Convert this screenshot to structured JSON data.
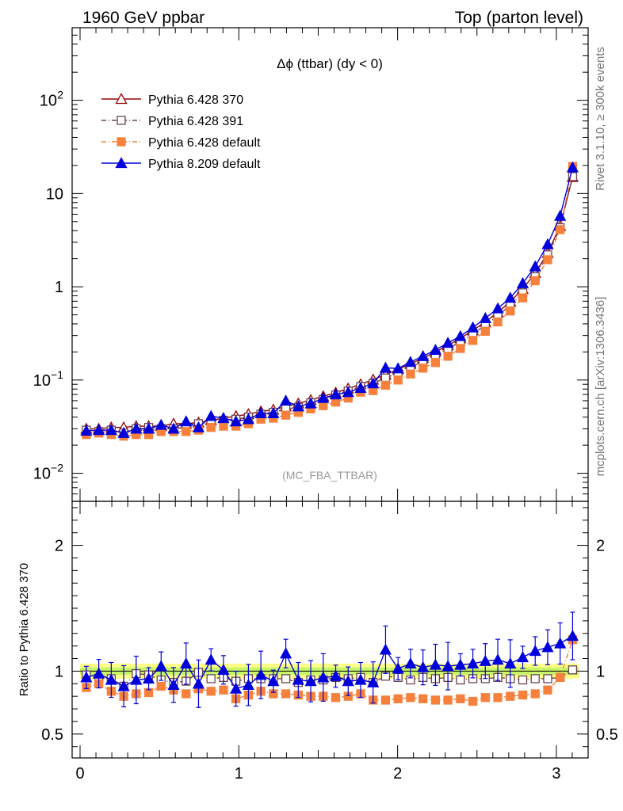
{
  "header": {
    "left": "1960 GeV ppbar",
    "right": "Top (parton level)"
  },
  "side_labels": {
    "rivet": "Rivet 3.1.10, ≥ 300k events",
    "mcplots": "mcplots.cern.ch [arXiv:1306.3436]"
  },
  "main_title": "Δϕ (ttbar) (dy < 0)",
  "watermark": "(MC_FBA_TTBAR)",
  "ratio_ylabel": "Ratio to Pythia 6.428 370",
  "colors": {
    "p370": "#990000",
    "p391": "#6b4351",
    "p6def": "#f5813d",
    "p8def": "#0000dd",
    "band_inner": "#c8f56a",
    "band_outer": "#ffff88"
  },
  "chart_data": [
    {
      "type": "line",
      "panel": "main",
      "yscale": "log",
      "xlim": [
        -0.05,
        3.2
      ],
      "ylim": [
        0.005,
        600
      ],
      "x_ticks": [
        0,
        1,
        2,
        3
      ],
      "y_ticks": [
        {
          "value": 0.01,
          "label": "10",
          "exp": "−2"
        },
        {
          "value": 0.1,
          "label": "10",
          "exp": "−1"
        },
        {
          "value": 1,
          "label": "1",
          "exp": ""
        },
        {
          "value": 10,
          "label": "10",
          "exp": ""
        },
        {
          "value": 100,
          "label": "10",
          "exp": "2"
        }
      ],
      "x": [
        0.0393,
        0.1178,
        0.1963,
        0.2749,
        0.3534,
        0.432,
        0.5105,
        0.589,
        0.6676,
        0.7461,
        0.8247,
        0.9032,
        0.9817,
        1.0603,
        1.1388,
        1.2174,
        1.2959,
        1.3744,
        1.453,
        1.5315,
        1.6101,
        1.6886,
        1.7671,
        1.8457,
        1.9242,
        2.0028,
        2.0813,
        2.1598,
        2.2384,
        2.3169,
        2.3955,
        2.474,
        2.5525,
        2.6311,
        2.7096,
        2.7882,
        2.8667,
        2.9452,
        3.0238,
        3.1023
      ],
      "series": [
        {
          "name": "Pythia 6.428 370",
          "key": "p370",
          "marker": "triangle-open",
          "dash": "",
          "values": [
            0.03,
            0.03,
            0.031,
            0.031,
            0.032,
            0.032,
            0.032,
            0.034,
            0.034,
            0.035,
            0.037,
            0.039,
            0.041,
            0.043,
            0.046,
            0.048,
            0.052,
            0.056,
            0.061,
            0.067,
            0.073,
            0.081,
            0.09,
            0.101,
            0.114,
            0.13,
            0.149,
            0.172,
            0.2,
            0.235,
            0.28,
            0.34,
            0.42,
            0.53,
            0.69,
            0.95,
            1.4,
            2.3,
            4.5,
            15.0
          ]
        },
        {
          "name": "Pythia 6.428 391",
          "key": "p391",
          "marker": "square-open",
          "dash": "6,3,1,3",
          "values": [
            0.029,
            0.028,
            0.029,
            0.027,
            0.03,
            0.031,
            0.03,
            0.03,
            0.031,
            0.034,
            0.035,
            0.037,
            0.038,
            0.04,
            0.043,
            0.045,
            0.049,
            0.051,
            0.057,
            0.062,
            0.069,
            0.076,
            0.085,
            0.092,
            0.105,
            0.119,
            0.138,
            0.158,
            0.186,
            0.216,
            0.258,
            0.312,
            0.387,
            0.49,
            0.63,
            0.86,
            1.28,
            2.2,
            4.3,
            15.2
          ]
        },
        {
          "name": "Pythia 6.428 default",
          "key": "p6def",
          "marker": "square-filled",
          "dash": "6,3,1,3",
          "values": [
            0.026,
            0.027,
            0.026,
            0.025,
            0.026,
            0.026,
            0.028,
            0.028,
            0.028,
            0.029,
            0.031,
            0.032,
            0.032,
            0.034,
            0.038,
            0.039,
            0.042,
            0.045,
            0.049,
            0.053,
            0.058,
            0.064,
            0.074,
            0.077,
            0.088,
            0.1,
            0.116,
            0.134,
            0.154,
            0.18,
            0.218,
            0.266,
            0.333,
            0.42,
            0.55,
            0.76,
            1.16,
            1.95,
            4.1,
            19.5
          ]
        },
        {
          "name": "Pythia 8.209 default",
          "key": "p8def",
          "marker": "triangle-filled",
          "dash": "",
          "values": [
            0.0285,
            0.029,
            0.029,
            0.027,
            0.03,
            0.03,
            0.033,
            0.03,
            0.036,
            0.031,
            0.041,
            0.039,
            0.036,
            0.038,
            0.044,
            0.044,
            0.06,
            0.052,
            0.056,
            0.064,
            0.07,
            0.074,
            0.082,
            0.092,
            0.135,
            0.133,
            0.156,
            0.18,
            0.21,
            0.25,
            0.295,
            0.365,
            0.46,
            0.585,
            0.76,
            1.09,
            1.65,
            2.85,
            5.75,
            19.0
          ]
        }
      ]
    },
    {
      "type": "line",
      "panel": "ratio",
      "xlim": [
        -0.05,
        3.2
      ],
      "ylim": [
        0.31,
        2.35
      ],
      "x_ticks": [
        0,
        1,
        2,
        3
      ],
      "y_ticks": [
        0.5,
        1,
        2
      ],
      "ylabel": "Ratio to Pythia 6.428 370",
      "reference_band": {
        "inner": 0.03,
        "outer": 0.06
      },
      "series": [
        {
          "name": "Pythia 6.428 391",
          "key": "p391",
          "values": [
            0.97,
            0.94,
            0.94,
            0.88,
            0.98,
            0.97,
            0.93,
            0.91,
            0.92,
            0.99,
            0.94,
            0.95,
            0.92,
            0.94,
            0.94,
            0.94,
            0.94,
            0.91,
            0.93,
            0.93,
            0.95,
            0.94,
            0.95,
            0.91,
            0.96,
            0.95,
            0.93,
            0.95,
            0.94,
            0.95,
            0.93,
            0.94,
            0.94,
            0.95,
            0.94,
            0.93,
            0.94,
            0.94,
            0.95,
            1.01
          ]
        },
        {
          "name": "Pythia 6.428 default",
          "key": "p6def",
          "values": [
            0.87,
            0.9,
            0.84,
            0.8,
            0.82,
            0.83,
            0.88,
            0.85,
            0.82,
            0.86,
            0.84,
            0.85,
            0.78,
            0.81,
            0.84,
            0.82,
            0.82,
            0.81,
            0.8,
            0.8,
            0.79,
            0.8,
            0.82,
            0.77,
            0.77,
            0.78,
            0.79,
            0.78,
            0.77,
            0.77,
            0.78,
            0.76,
            0.79,
            0.79,
            0.8,
            0.81,
            0.82,
            0.85,
            0.95,
            1.25
          ]
        },
        {
          "name": "Pythia 8.209 default",
          "key": "p8def",
          "values": [
            0.95,
            0.98,
            0.93,
            0.88,
            0.93,
            0.94,
            1.04,
            0.89,
            1.06,
            0.9,
            1.09,
            1.01,
            0.86,
            0.89,
            0.97,
            0.92,
            1.14,
            0.93,
            0.92,
            0.95,
            0.96,
            0.92,
            0.93,
            0.91,
            1.17,
            1.02,
            1.06,
            1.03,
            1.05,
            1.04,
            1.05,
            1.06,
            1.08,
            1.09,
            1.06,
            1.11,
            1.16,
            1.19,
            1.22,
            1.28
          ]
        }
      ]
    }
  ]
}
